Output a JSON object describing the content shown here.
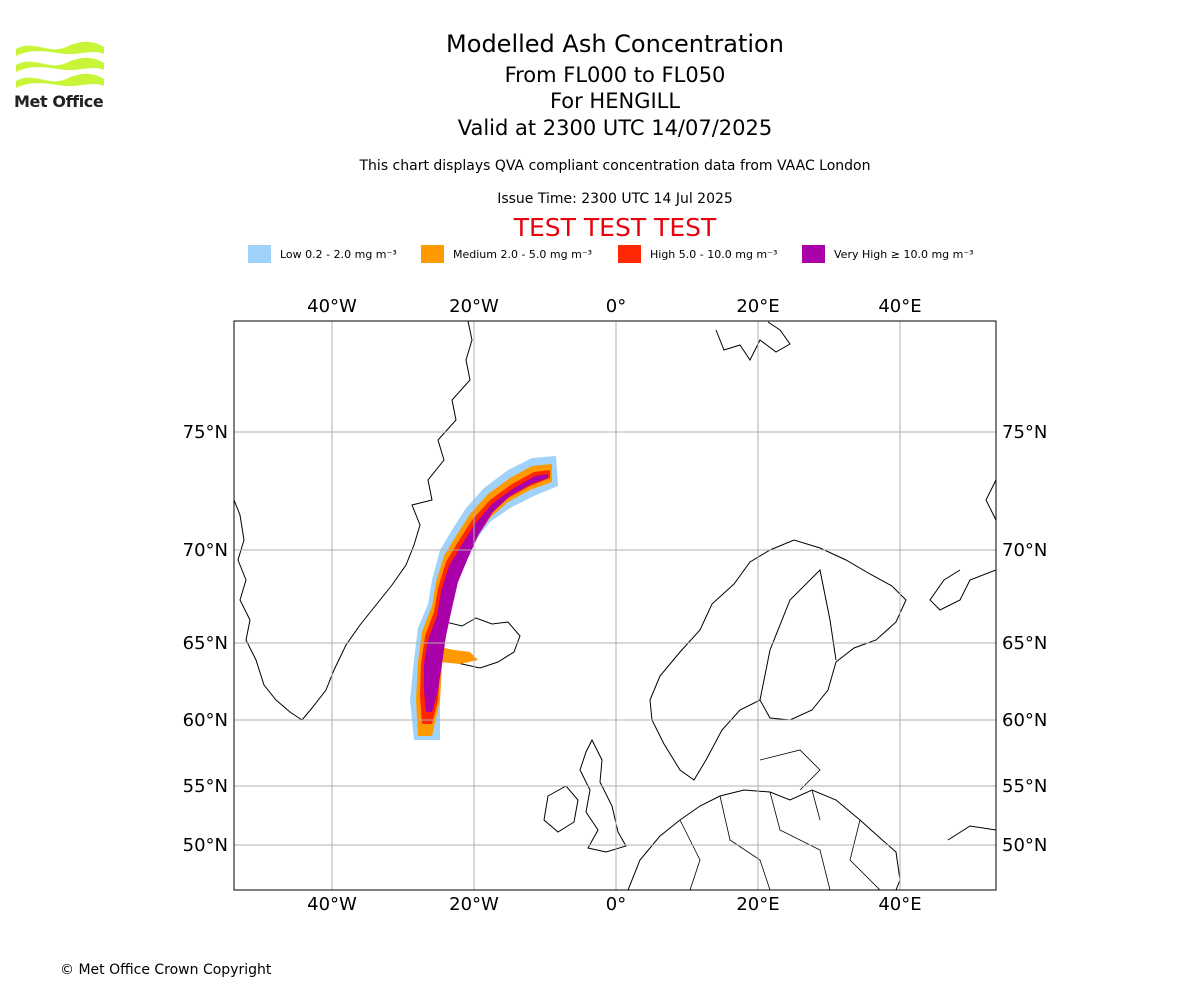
{
  "header": {
    "title": "Modelled Ash Concentration",
    "levels": "From FL000 to FL050",
    "volcano": "For HENGILL",
    "valid": "Valid at 2300 UTC 14/07/2025",
    "subtitle": "This chart displays QVA compliant concentration data from VAAC London",
    "issue_time": "Issue Time: 2300 UTC 14 Jul 2025",
    "test_banner": "TEST TEST TEST"
  },
  "logo": {
    "text": "Met Office",
    "icon": "met-office-wave-logo",
    "color": "#c8f53a"
  },
  "legend": [
    {
      "label": "Low 0.2 - 2.0 mg m⁻³",
      "color": "#a0d2fa"
    },
    {
      "label": "Medium 2.0 - 5.0 mg m⁻³",
      "color": "#ff9900"
    },
    {
      "label": "High 5.0 - 10.0 mg m⁻³",
      "color": "#ff2800"
    },
    {
      "label": "Very High  ≥  10.0 mg m⁻³",
      "color": "#aa00aa"
    }
  ],
  "map": {
    "lon_ticks": [
      "40°W",
      "20°W",
      "0°",
      "20°E",
      "40°E"
    ],
    "lat_ticks": [
      "75°N",
      "70°N",
      "65°N",
      "60°N",
      "55°N",
      "50°N"
    ],
    "gridline_color": "#b0b0b0"
  },
  "footer": {
    "copyright": "© Met Office Crown Copyright"
  }
}
